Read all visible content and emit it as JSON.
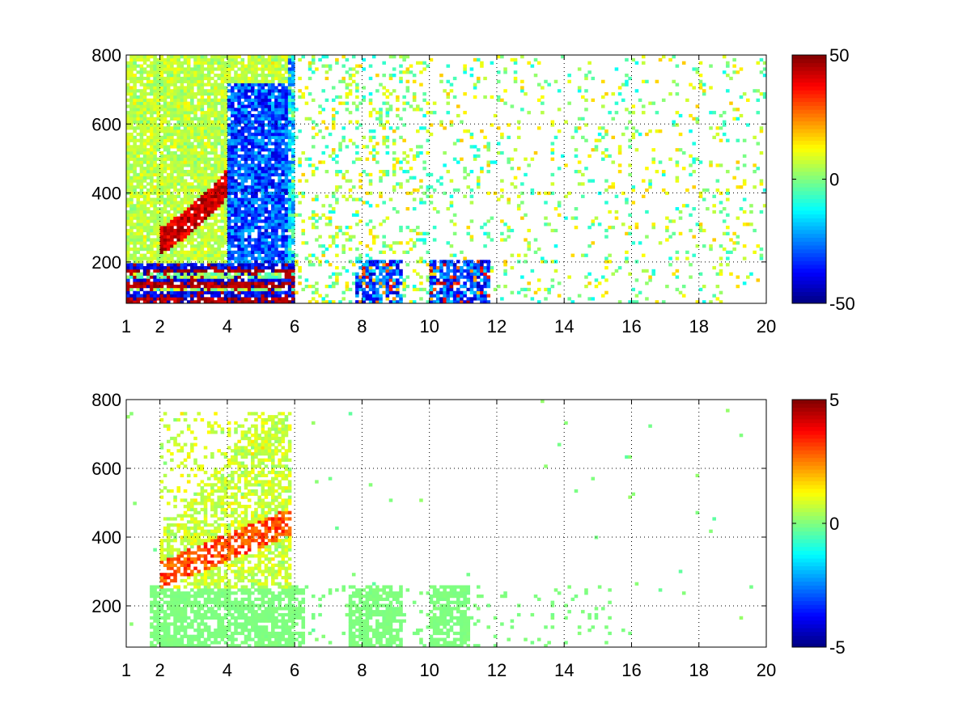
{
  "figure": {
    "background": "#ffffff",
    "colormap": "jet"
  },
  "chart_data": [
    {
      "type": "heatmap",
      "title": "",
      "xlabel": "",
      "ylabel": "",
      "xlim": [
        1,
        20
      ],
      "ylim": [
        80,
        800
      ],
      "xticks": [
        1,
        2,
        4,
        6,
        8,
        10,
        12,
        14,
        16,
        18,
        20
      ],
      "xtick_labels": [
        "1",
        "2",
        "4",
        "6",
        "8",
        "10",
        "12",
        "14",
        "16",
        "18",
        "20"
      ],
      "yticks": [
        200,
        400,
        600,
        800
      ],
      "ytick_labels": [
        "200",
        "400",
        "600",
        "800"
      ],
      "grid": true,
      "grid_style": "dotted",
      "colorbar": {
        "range": [
          -50,
          50
        ],
        "ticks": [
          -50,
          0,
          50
        ],
        "tick_labels": [
          "-50",
          "0",
          "50"
        ]
      },
      "features": [
        {
          "kind": "dense-region",
          "x": [
            1.2,
            5.8
          ],
          "y": [
            80,
            800
          ],
          "description": "dense mixed values, yellow/green dominant"
        },
        {
          "kind": "positive-band",
          "x": [
            2.0,
            4.6
          ],
          "y": [
            240,
            480
          ],
          "peak": 45,
          "description": "curved red band rising with x"
        },
        {
          "kind": "negative-region",
          "x": [
            4.0,
            5.8
          ],
          "y": [
            200,
            700
          ],
          "peak": -45,
          "description": "blue region"
        },
        {
          "kind": "low-y-bands",
          "x": [
            1.0,
            12.0
          ],
          "y": [
            80,
            200
          ],
          "description": "strong alternating red/blue stripes near bottom"
        },
        {
          "kind": "sparse-scatter",
          "x": [
            6.0,
            20.0
          ],
          "y": [
            80,
            800
          ],
          "description": "sparse green/yellow/cyan pixels"
        }
      ]
    },
    {
      "type": "heatmap",
      "title": "",
      "xlabel": "",
      "ylabel": "",
      "xlim": [
        1,
        20
      ],
      "ylim": [
        80,
        800
      ],
      "xticks": [
        1,
        2,
        4,
        6,
        8,
        10,
        12,
        14,
        16,
        18,
        20
      ],
      "xtick_labels": [
        "1",
        "2",
        "4",
        "6",
        "8",
        "10",
        "12",
        "14",
        "16",
        "18",
        "20"
      ],
      "yticks": [
        200,
        400,
        600,
        800
      ],
      "ytick_labels": [
        "200",
        "400",
        "600",
        "800"
      ],
      "grid": true,
      "grid_style": "dotted",
      "colorbar": {
        "range": [
          -5,
          5
        ],
        "ticks": [
          -5,
          0,
          5
        ],
        "tick_labels": [
          "-5",
          "0",
          "5"
        ]
      },
      "features": [
        {
          "kind": "positive-band",
          "x": [
            2.0,
            5.8
          ],
          "y": [
            260,
            500
          ],
          "peak": 3.5,
          "description": "orange/yellow curved band"
        },
        {
          "kind": "scatter-region",
          "x": [
            2.2,
            5.8
          ],
          "y": [
            260,
            760
          ],
          "description": "mixed yellow/green/cyan pixels"
        },
        {
          "kind": "near-zero-block",
          "x": [
            1.7,
            16.0
          ],
          "y": [
            80,
            260
          ],
          "value": 0,
          "description": "light green near-zero columns"
        }
      ]
    }
  ]
}
